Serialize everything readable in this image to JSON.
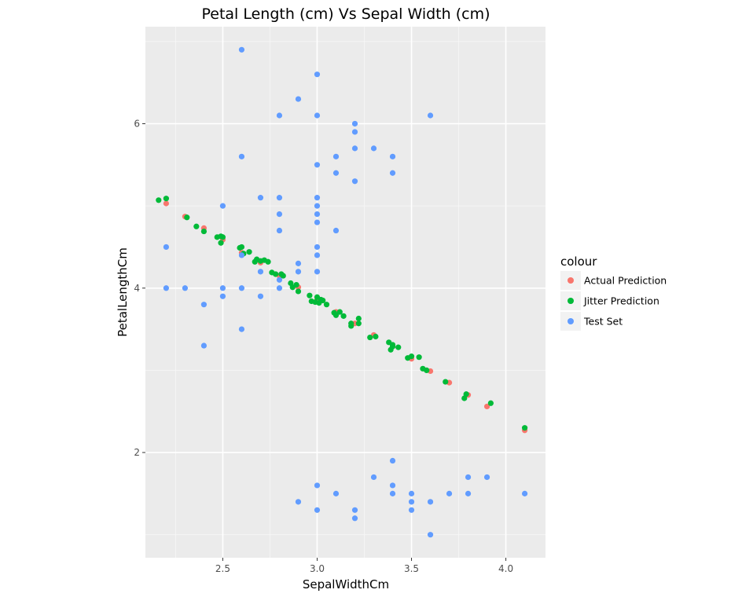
{
  "chart_data": {
    "type": "scatter",
    "title": "Petal Length (cm) Vs Sepal Width (cm)",
    "xlabel": "SepalWidthCm",
    "ylabel": "PetalLengthCm",
    "xlim": [
      2.09,
      4.21
    ],
    "ylim": [
      0.72,
      7.18
    ],
    "x_ticks": [
      2.5,
      3.0,
      3.5,
      4.0
    ],
    "x_tick_labels": [
      "2.5",
      "3.0",
      "3.5",
      "4.0"
    ],
    "y_ticks": [
      2,
      4,
      6
    ],
    "y_tick_labels": [
      "2",
      "4",
      "6"
    ],
    "grid": true,
    "legend": {
      "title": "colour",
      "position": "right"
    },
    "series": [
      {
        "name": "Actual Prediction",
        "color": "#F8766D",
        "points": [
          [
            2.2,
            5.03
          ],
          [
            2.3,
            4.87
          ],
          [
            2.4,
            4.73
          ],
          [
            2.5,
            4.59
          ],
          [
            2.6,
            4.43
          ],
          [
            2.7,
            4.31
          ],
          [
            2.8,
            4.15
          ],
          [
            2.9,
            4.01
          ],
          [
            3.0,
            3.86
          ],
          [
            3.1,
            3.71
          ],
          [
            3.2,
            3.57
          ],
          [
            3.3,
            3.43
          ],
          [
            3.4,
            3.29
          ],
          [
            3.5,
            3.14
          ],
          [
            3.6,
            2.99
          ],
          [
            3.7,
            2.85
          ],
          [
            3.8,
            2.7
          ],
          [
            3.9,
            2.56
          ],
          [
            4.1,
            2.27
          ]
        ]
      },
      {
        "name": "Jitter Prediction",
        "color": "#00BA38",
        "points": [
          [
            2.16,
            5.07
          ],
          [
            2.2,
            5.09
          ],
          [
            2.31,
            4.86
          ],
          [
            2.36,
            4.75
          ],
          [
            2.4,
            4.69
          ],
          [
            2.47,
            4.62
          ],
          [
            2.49,
            4.63
          ],
          [
            2.49,
            4.55
          ],
          [
            2.5,
            4.62
          ],
          [
            2.59,
            4.49
          ],
          [
            2.6,
            4.5
          ],
          [
            2.61,
            4.42
          ],
          [
            2.64,
            4.44
          ],
          [
            2.67,
            4.32
          ],
          [
            2.68,
            4.35
          ],
          [
            2.7,
            4.33
          ],
          [
            2.72,
            4.34
          ],
          [
            2.74,
            4.32
          ],
          [
            2.76,
            4.19
          ],
          [
            2.78,
            4.17
          ],
          [
            2.81,
            4.17
          ],
          [
            2.82,
            4.15
          ],
          [
            2.86,
            4.06
          ],
          [
            2.87,
            4.01
          ],
          [
            2.89,
            4.04
          ],
          [
            2.9,
            3.96
          ],
          [
            2.96,
            3.91
          ],
          [
            2.97,
            3.84
          ],
          [
            2.99,
            3.83
          ],
          [
            3.0,
            3.89
          ],
          [
            3.01,
            3.82
          ],
          [
            3.02,
            3.86
          ],
          [
            3.03,
            3.85
          ],
          [
            3.05,
            3.8
          ],
          [
            3.09,
            3.7
          ],
          [
            3.1,
            3.67
          ],
          [
            3.12,
            3.71
          ],
          [
            3.14,
            3.66
          ],
          [
            3.18,
            3.57
          ],
          [
            3.18,
            3.54
          ],
          [
            3.22,
            3.63
          ],
          [
            3.22,
            3.57
          ],
          [
            3.28,
            3.4
          ],
          [
            3.31,
            3.41
          ],
          [
            3.38,
            3.34
          ],
          [
            3.39,
            3.25
          ],
          [
            3.4,
            3.29
          ],
          [
            3.4,
            3.31
          ],
          [
            3.43,
            3.28
          ],
          [
            3.48,
            3.15
          ],
          [
            3.5,
            3.17
          ],
          [
            3.54,
            3.16
          ],
          [
            3.56,
            3.02
          ],
          [
            3.58,
            3.0
          ],
          [
            3.68,
            2.86
          ],
          [
            3.78,
            2.66
          ],
          [
            3.79,
            2.71
          ],
          [
            3.92,
            2.6
          ],
          [
            4.1,
            2.3
          ]
        ]
      },
      {
        "name": "Test Set",
        "color": "#619CFF",
        "points": [
          [
            2.6,
            6.9
          ],
          [
            3.0,
            6.6
          ],
          [
            2.9,
            6.3
          ],
          [
            2.8,
            6.1
          ],
          [
            3.0,
            6.1
          ],
          [
            3.6,
            6.1
          ],
          [
            3.2,
            6.0
          ],
          [
            3.2,
            5.9
          ],
          [
            3.2,
            5.7
          ],
          [
            3.3,
            5.7
          ],
          [
            2.6,
            5.6
          ],
          [
            3.1,
            5.6
          ],
          [
            3.4,
            5.6
          ],
          [
            3.0,
            5.5
          ],
          [
            3.1,
            5.4
          ],
          [
            3.4,
            5.4
          ],
          [
            3.2,
            5.3
          ],
          [
            2.7,
            5.1
          ],
          [
            2.8,
            5.1
          ],
          [
            3.0,
            5.1
          ],
          [
            2.5,
            5.0
          ],
          [
            3.0,
            5.0
          ],
          [
            2.8,
            4.9
          ],
          [
            3.0,
            4.9
          ],
          [
            3.0,
            4.8
          ],
          [
            2.8,
            4.7
          ],
          [
            3.1,
            4.7
          ],
          [
            2.2,
            4.5
          ],
          [
            3.0,
            4.5
          ],
          [
            2.6,
            4.4
          ],
          [
            3.0,
            4.4
          ],
          [
            2.9,
            4.3
          ],
          [
            2.7,
            4.2
          ],
          [
            2.9,
            4.2
          ],
          [
            3.0,
            4.2
          ],
          [
            2.8,
            4.1
          ],
          [
            2.2,
            4.0
          ],
          [
            2.3,
            4.0
          ],
          [
            2.5,
            4.0
          ],
          [
            2.6,
            4.0
          ],
          [
            2.8,
            4.0
          ],
          [
            2.5,
            3.9
          ],
          [
            2.7,
            3.9
          ],
          [
            2.4,
            3.8
          ],
          [
            2.6,
            3.5
          ],
          [
            2.4,
            3.3
          ],
          [
            3.4,
            1.9
          ],
          [
            3.3,
            1.7
          ],
          [
            3.8,
            1.7
          ],
          [
            3.9,
            1.7
          ],
          [
            3.0,
            1.6
          ],
          [
            3.4,
            1.6
          ],
          [
            3.1,
            1.5
          ],
          [
            3.4,
            1.5
          ],
          [
            3.5,
            1.5
          ],
          [
            3.7,
            1.5
          ],
          [
            3.8,
            1.5
          ],
          [
            4.1,
            1.5
          ],
          [
            2.9,
            1.4
          ],
          [
            3.5,
            1.4
          ],
          [
            3.6,
            1.4
          ],
          [
            3.0,
            1.3
          ],
          [
            3.2,
            1.3
          ],
          [
            3.5,
            1.3
          ],
          [
            3.2,
            1.2
          ],
          [
            3.6,
            1.0
          ]
        ]
      }
    ]
  }
}
